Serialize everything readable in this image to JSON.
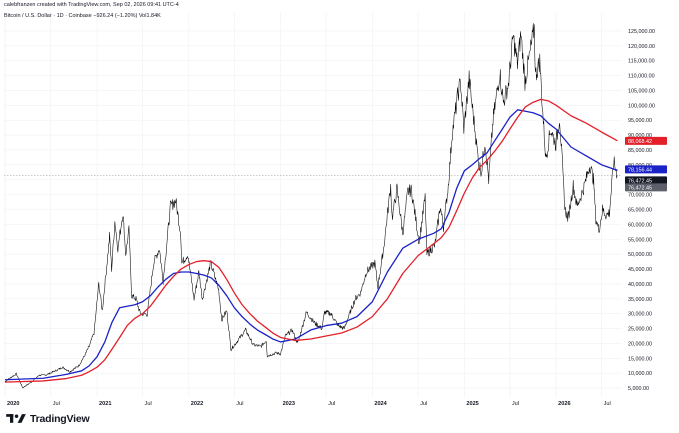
{
  "header": {
    "created_line": "calebfranzen created with TradingView.com, Sep 02, 2026 09:41 UTC-4",
    "symbol_line": "Bitcoin / U.S. Dollar · 1D · Coinbase  −926.24 (−1.20%)  Vol1.84K"
  },
  "brand": {
    "name": "TradingView"
  },
  "colors": {
    "price": "#000000",
    "ma_blue": "#1a22c8",
    "ma_red": "#e3202a",
    "grid": "#eef0f3",
    "axis_text": "#131722"
  },
  "chart_data": {
    "type": "line",
    "title": "",
    "xlabel": "",
    "ylabel": "",
    "x_ticks": [
      {
        "label": "2020",
        "date": "2020-01-01"
      },
      {
        "label": "Jul",
        "date": "2020-07-01"
      },
      {
        "label": "2021",
        "date": "2021-01-01"
      },
      {
        "label": "Jul",
        "date": "2021-07-01"
      },
      {
        "label": "2022",
        "date": "2022-01-01"
      },
      {
        "label": "Jul",
        "date": "2022-07-01"
      },
      {
        "label": "2023",
        "date": "2023-01-01"
      },
      {
        "label": "Jul",
        "date": "2023-07-01"
      },
      {
        "label": "2024",
        "date": "2024-01-01"
      },
      {
        "label": "Jul",
        "date": "2024-07-01"
      },
      {
        "label": "2025",
        "date": "2025-01-01"
      },
      {
        "label": "Jul",
        "date": "2025-07-01"
      },
      {
        "label": "2026",
        "date": "2026-01-01"
      },
      {
        "label": "Jul",
        "date": "2026-07-01"
      }
    ],
    "y_ticks": [
      "5,000.00",
      "10,000.00",
      "15,000.00",
      "20,000.00",
      "25,000.00",
      "30,000.00",
      "35,000.00",
      "40,000.00",
      "45,000.00",
      "50,000.00",
      "55,000.00",
      "60,000.00",
      "65,000.00",
      "70,000.00",
      "75,000.00",
      "80,000.00",
      "85,000.00",
      "90,000.00",
      "95,000.00",
      "100,000.00",
      "105,000.00",
      "110,000.00",
      "115,000.00",
      "120,000.00",
      "125,000.00"
    ],
    "ylim": [
      2000,
      128000
    ],
    "price_labels": [
      {
        "text": "88,068.42",
        "value": 88068.42,
        "color": "#e3202a"
      },
      {
        "text": "78,156.44",
        "value": 78156.44,
        "color": "#1a22c8"
      },
      {
        "text": "76,472.45",
        "value": 76472.45,
        "color": "#131722"
      },
      {
        "text": "76,472.45",
        "value": 76472.45,
        "color": "#5d606b"
      }
    ],
    "series": [
      {
        "key": "price",
        "points": [
          [
            "2020-01-01",
            7200
          ],
          [
            "2020-02-15",
            9800
          ],
          [
            "2020-03-12",
            5000
          ],
          [
            "2020-03-16",
            5400
          ],
          [
            "2020-04-15",
            7000
          ],
          [
            "2020-05-15",
            9300
          ],
          [
            "2020-06-15",
            9500
          ],
          [
            "2020-07-25",
            11000
          ],
          [
            "2020-08-17",
            12000
          ],
          [
            "2020-09-15",
            10500
          ],
          [
            "2020-10-20",
            12500
          ],
          [
            "2020-11-10",
            15500
          ],
          [
            "2020-12-01",
            19000
          ],
          [
            "2020-12-20",
            23500
          ],
          [
            "2021-01-08",
            40000
          ],
          [
            "2021-01-22",
            31000
          ],
          [
            "2021-02-20",
            56000
          ],
          [
            "2021-02-28",
            45000
          ],
          [
            "2021-03-13",
            61000
          ],
          [
            "2021-03-25",
            52000
          ],
          [
            "2021-04-14",
            64000
          ],
          [
            "2021-04-25",
            50000
          ],
          [
            "2021-05-08",
            58000
          ],
          [
            "2021-05-19",
            36000
          ],
          [
            "2021-06-05",
            35000
          ],
          [
            "2021-06-22",
            30000
          ],
          [
            "2021-07-20",
            29800
          ],
          [
            "2021-08-14",
            47000
          ],
          [
            "2021-09-06",
            52000
          ],
          [
            "2021-09-21",
            41000
          ],
          [
            "2021-10-20",
            66000
          ],
          [
            "2021-11-10",
            68000
          ],
          [
            "2021-11-30",
            57000
          ],
          [
            "2021-12-04",
            47000
          ],
          [
            "2021-12-28",
            50000
          ],
          [
            "2022-01-22",
            35000
          ],
          [
            "2022-02-10",
            44000
          ],
          [
            "2022-02-24",
            35000
          ],
          [
            "2022-03-29",
            47000
          ],
          [
            "2022-04-30",
            38000
          ],
          [
            "2022-05-12",
            28000
          ],
          [
            "2022-06-01",
            31000
          ],
          [
            "2022-06-18",
            18000
          ],
          [
            "2022-07-15",
            21000
          ],
          [
            "2022-08-15",
            24500
          ],
          [
            "2022-09-15",
            19500
          ],
          [
            "2022-10-15",
            19000
          ],
          [
            "2022-11-05",
            21000
          ],
          [
            "2022-11-09",
            15800
          ],
          [
            "2022-12-15",
            16800
          ],
          [
            "2023-01-01",
            16500
          ],
          [
            "2023-01-20",
            22500
          ],
          [
            "2023-02-16",
            24500
          ],
          [
            "2023-03-10",
            20000
          ],
          [
            "2023-04-14",
            30500
          ],
          [
            "2023-05-15",
            27000
          ],
          [
            "2023-06-15",
            25000
          ],
          [
            "2023-06-25",
            30500
          ],
          [
            "2023-07-20",
            30000
          ],
          [
            "2023-08-18",
            26000
          ],
          [
            "2023-09-11",
            25000
          ],
          [
            "2023-10-25",
            35000
          ],
          [
            "2023-11-15",
            37000
          ],
          [
            "2023-12-08",
            44000
          ],
          [
            "2024-01-11",
            47000
          ],
          [
            "2024-01-23",
            39000
          ],
          [
            "2024-02-15",
            52000
          ],
          [
            "2024-03-14",
            73000
          ],
          [
            "2024-03-20",
            62000
          ],
          [
            "2024-04-08",
            72000
          ],
          [
            "2024-05-01",
            57000
          ],
          [
            "2024-05-21",
            71000
          ],
          [
            "2024-06-05",
            71500
          ],
          [
            "2024-07-05",
            54000
          ],
          [
            "2024-07-29",
            69000
          ],
          [
            "2024-08-05",
            50000
          ],
          [
            "2024-09-06",
            53000
          ],
          [
            "2024-09-27",
            66000
          ],
          [
            "2024-10-10",
            59000
          ],
          [
            "2024-10-29",
            73000
          ],
          [
            "2024-11-13",
            90000
          ],
          [
            "2024-12-05",
            103000
          ],
          [
            "2024-12-17",
            108000
          ],
          [
            "2024-12-30",
            92000
          ],
          [
            "2025-01-20",
            109000
          ],
          [
            "2025-02-05",
            97000
          ],
          [
            "2025-02-28",
            80000
          ],
          [
            "2025-03-10",
            78000
          ],
          [
            "2025-03-24",
            88000
          ],
          [
            "2025-04-08",
            75000
          ],
          [
            "2025-04-25",
            95000
          ],
          [
            "2025-05-22",
            111000
          ],
          [
            "2025-06-05",
            101000
          ],
          [
            "2025-06-25",
            107000
          ],
          [
            "2025-07-14",
            123000
          ],
          [
            "2025-07-31",
            114000
          ],
          [
            "2025-08-14",
            124000
          ],
          [
            "2025-08-30",
            108000
          ],
          [
            "2025-09-18",
            117000
          ],
          [
            "2025-10-06",
            126000
          ],
          [
            "2025-10-11",
            110000
          ],
          [
            "2025-10-28",
            115000
          ],
          [
            "2025-11-07",
            100000
          ],
          [
            "2025-11-21",
            82000
          ],
          [
            "2025-12-10",
            92000
          ],
          [
            "2025-12-31",
            87000
          ],
          [
            "2026-01-15",
            96000
          ],
          [
            "2026-02-05",
            65000
          ],
          [
            "2026-02-18",
            62000
          ],
          [
            "2026-03-10",
            73000
          ],
          [
            "2026-03-25",
            66000
          ],
          [
            "2026-04-20",
            72000
          ],
          [
            "2026-05-15",
            80000
          ],
          [
            "2026-05-30",
            75000
          ],
          [
            "2026-06-08",
            62000
          ],
          [
            "2026-06-20",
            58000
          ],
          [
            "2026-07-05",
            65000
          ],
          [
            "2026-07-20",
            63000
          ],
          [
            "2026-08-01",
            64000
          ],
          [
            "2026-08-18",
            81000
          ],
          [
            "2026-08-28",
            78000
          ],
          [
            "2026-09-02",
            76472
          ]
        ]
      },
      {
        "key": "ma_blue",
        "points": [
          [
            "2020-01-01",
            7800
          ],
          [
            "2020-06-01",
            8300
          ],
          [
            "2020-09-01",
            9600
          ],
          [
            "2020-11-01",
            10800
          ],
          [
            "2020-12-01",
            12500
          ],
          [
            "2021-01-01",
            15500
          ],
          [
            "2021-02-01",
            20500
          ],
          [
            "2021-03-01",
            27000
          ],
          [
            "2021-04-01",
            32000
          ],
          [
            "2021-05-01",
            32500
          ],
          [
            "2021-06-01",
            33000
          ],
          [
            "2021-07-01",
            34000
          ],
          [
            "2021-08-01",
            36000
          ],
          [
            "2021-09-01",
            39000
          ],
          [
            "2021-10-01",
            41500
          ],
          [
            "2021-11-01",
            43500
          ],
          [
            "2021-12-01",
            44000
          ],
          [
            "2022-01-01",
            44000
          ],
          [
            "2022-02-01",
            43500
          ],
          [
            "2022-03-01",
            43000
          ],
          [
            "2022-04-01",
            42000
          ],
          [
            "2022-05-01",
            39500
          ],
          [
            "2022-06-01",
            36000
          ],
          [
            "2022-07-01",
            32000
          ],
          [
            "2022-08-01",
            29000
          ],
          [
            "2022-09-01",
            26500
          ],
          [
            "2022-10-01",
            24500
          ],
          [
            "2022-11-01",
            23000
          ],
          [
            "2022-12-01",
            21500
          ],
          [
            "2023-01-01",
            20500
          ],
          [
            "2023-03-01",
            21500
          ],
          [
            "2023-05-01",
            24500
          ],
          [
            "2023-07-01",
            26000
          ],
          [
            "2023-09-01",
            26800
          ],
          [
            "2023-11-01",
            29000
          ],
          [
            "2024-01-01",
            34000
          ],
          [
            "2024-03-01",
            44000
          ],
          [
            "2024-05-01",
            52000
          ],
          [
            "2024-07-01",
            55000
          ],
          [
            "2024-09-01",
            57000
          ],
          [
            "2024-10-01",
            58500
          ],
          [
            "2024-11-01",
            64000
          ],
          [
            "2024-12-01",
            72000
          ],
          [
            "2025-01-01",
            78000
          ],
          [
            "2025-02-01",
            80000
          ],
          [
            "2025-03-01",
            82000
          ],
          [
            "2025-04-01",
            84000
          ],
          [
            "2025-05-01",
            88000
          ],
          [
            "2025-06-01",
            92000
          ],
          [
            "2025-07-01",
            96000
          ],
          [
            "2025-08-01",
            98500
          ],
          [
            "2025-09-01",
            98000
          ],
          [
            "2025-10-01",
            97500
          ],
          [
            "2025-11-01",
            96500
          ],
          [
            "2025-12-01",
            94000
          ],
          [
            "2026-01-01",
            92000
          ],
          [
            "2026-03-01",
            86000
          ],
          [
            "2026-05-01",
            83000
          ],
          [
            "2026-07-01",
            80000
          ],
          [
            "2026-09-02",
            78156
          ]
        ]
      },
      {
        "key": "ma_red",
        "points": [
          [
            "2020-01-01",
            7000
          ],
          [
            "2020-06-01",
            7400
          ],
          [
            "2020-09-01",
            8200
          ],
          [
            "2020-11-01",
            9300
          ],
          [
            "2020-12-01",
            10500
          ],
          [
            "2021-01-01",
            12000
          ],
          [
            "2021-02-01",
            14500
          ],
          [
            "2021-03-01",
            18000
          ],
          [
            "2021-04-01",
            22000
          ],
          [
            "2021-05-01",
            26000
          ],
          [
            "2021-06-01",
            28500
          ],
          [
            "2021-07-01",
            30000
          ],
          [
            "2021-08-01",
            32500
          ],
          [
            "2021-09-01",
            36000
          ],
          [
            "2021-10-01",
            39500
          ],
          [
            "2021-11-01",
            42500
          ],
          [
            "2021-12-01",
            45000
          ],
          [
            "2022-01-01",
            46500
          ],
          [
            "2022-02-01",
            47500
          ],
          [
            "2022-03-01",
            47800
          ],
          [
            "2022-04-01",
            47500
          ],
          [
            "2022-05-01",
            45500
          ],
          [
            "2022-06-01",
            41500
          ],
          [
            "2022-07-01",
            37000
          ],
          [
            "2022-08-01",
            33000
          ],
          [
            "2022-09-01",
            30000
          ],
          [
            "2022-10-01",
            27500
          ],
          [
            "2022-11-01",
            25500
          ],
          [
            "2022-12-01",
            23500
          ],
          [
            "2023-01-01",
            22000
          ],
          [
            "2023-03-01",
            21000
          ],
          [
            "2023-05-01",
            21500
          ],
          [
            "2023-07-01",
            22500
          ],
          [
            "2023-09-01",
            23500
          ],
          [
            "2023-11-01",
            25500
          ],
          [
            "2024-01-01",
            29000
          ],
          [
            "2024-03-01",
            35000
          ],
          [
            "2024-05-01",
            43500
          ],
          [
            "2024-07-01",
            49500
          ],
          [
            "2024-09-01",
            53500
          ],
          [
            "2024-10-01",
            55500
          ],
          [
            "2024-11-01",
            59000
          ],
          [
            "2024-12-01",
            64500
          ],
          [
            "2025-01-01",
            70500
          ],
          [
            "2025-02-01",
            75500
          ],
          [
            "2025-03-01",
            79000
          ],
          [
            "2025-04-01",
            81500
          ],
          [
            "2025-05-01",
            84500
          ],
          [
            "2025-06-01",
            88000
          ],
          [
            "2025-07-01",
            92000
          ],
          [
            "2025-08-01",
            96000
          ],
          [
            "2025-09-01",
            99500
          ],
          [
            "2025-10-01",
            101000
          ],
          [
            "2025-11-01",
            102000
          ],
          [
            "2025-12-01",
            101500
          ],
          [
            "2026-01-01",
            100000
          ],
          [
            "2026-03-01",
            96500
          ],
          [
            "2026-05-01",
            94000
          ],
          [
            "2026-07-01",
            91000
          ],
          [
            "2026-09-02",
            88068
          ]
        ]
      }
    ]
  }
}
